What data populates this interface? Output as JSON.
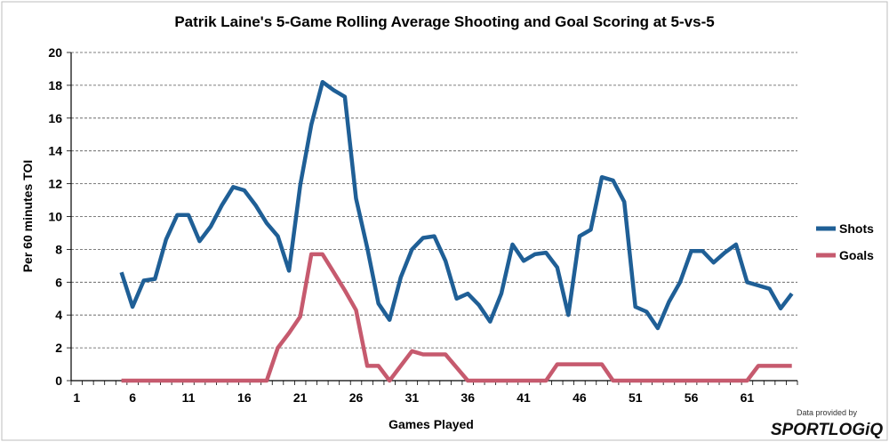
{
  "chart_data": {
    "type": "line",
    "title": "Patrik Laine's 5-Game Rolling Average Shooting and Goal Scoring at 5-vs-5",
    "xlabel": "Games Played",
    "ylabel": "Per 60 minutes TOI",
    "xlim": [
      1,
      65
    ],
    "ylim": [
      0,
      20
    ],
    "yticks": [
      0,
      2,
      4,
      6,
      8,
      10,
      12,
      14,
      16,
      18,
      20
    ],
    "xticks": [
      1,
      6,
      11,
      16,
      21,
      26,
      31,
      36,
      41,
      46,
      51,
      56,
      61
    ],
    "grid": "horizontal-dashed",
    "legend_position": "right",
    "series": [
      {
        "name": "Shots",
        "color": "#1f5f96",
        "x": [
          5,
          6,
          7,
          8,
          9,
          10,
          11,
          12,
          13,
          14,
          15,
          16,
          17,
          18,
          19,
          20,
          21,
          22,
          23,
          24,
          25,
          26,
          27,
          28,
          29,
          30,
          31,
          32,
          33,
          34,
          35,
          36,
          37,
          38,
          39,
          40,
          41,
          42,
          43,
          44,
          45,
          46,
          47,
          48,
          49,
          50,
          51,
          52,
          53,
          54,
          55,
          56,
          57,
          58,
          59,
          60,
          61,
          62,
          63,
          64,
          65
        ],
        "values": [
          6.6,
          4.5,
          6.1,
          6.2,
          8.6,
          10.1,
          10.1,
          8.5,
          9.4,
          10.7,
          11.8,
          11.6,
          10.7,
          9.6,
          8.8,
          6.7,
          11.9,
          15.6,
          18.2,
          17.7,
          17.3,
          11.1,
          8.1,
          4.7,
          3.7,
          6.3,
          8.0,
          8.7,
          8.8,
          7.3,
          5.0,
          5.3,
          4.6,
          3.6,
          5.3,
          8.3,
          7.3,
          7.7,
          7.8,
          6.9,
          4.0,
          8.8,
          9.2,
          12.4,
          12.2,
          10.9,
          4.5,
          4.2,
          3.2,
          4.8,
          6.0,
          7.9,
          7.9,
          7.2,
          7.8,
          8.3,
          6.0,
          5.8,
          5.6,
          4.4,
          5.3
        ]
      },
      {
        "name": "Goals",
        "color": "#c65a6e",
        "x": [
          5,
          6,
          7,
          8,
          9,
          10,
          11,
          12,
          13,
          14,
          15,
          16,
          17,
          18,
          19,
          20,
          21,
          22,
          23,
          24,
          25,
          26,
          27,
          28,
          29,
          30,
          31,
          32,
          33,
          34,
          35,
          36,
          37,
          38,
          39,
          40,
          41,
          42,
          43,
          44,
          45,
          46,
          47,
          48,
          49,
          50,
          51,
          52,
          53,
          54,
          55,
          56,
          57,
          58,
          59,
          60,
          61,
          62,
          63,
          64,
          65
        ],
        "values": [
          0,
          0,
          0,
          0,
          0,
          0,
          0,
          0,
          0,
          0,
          0,
          0,
          0,
          0,
          2.0,
          2.9,
          3.9,
          7.7,
          7.7,
          6.6,
          5.5,
          4.3,
          0.9,
          0.9,
          0,
          0.9,
          1.8,
          1.6,
          1.6,
          1.6,
          0.8,
          0,
          0,
          0,
          0,
          0,
          0,
          0,
          0,
          1.0,
          1.0,
          1.0,
          1.0,
          1.0,
          0,
          0,
          0,
          0,
          0,
          0,
          0,
          0,
          0,
          0,
          0,
          0,
          0,
          0.9,
          0.9,
          0.9,
          0.9
        ]
      }
    ]
  },
  "footer": {
    "provided_by": "Data provided by",
    "brand": "SPORTLOGiQ"
  }
}
